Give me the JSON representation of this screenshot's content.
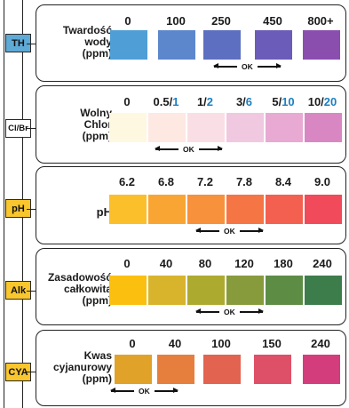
{
  "pads": [
    {
      "label": "TH",
      "color": "#5ea9d6"
    },
    {
      "label": "Cl/Br",
      "color": "#ffffff"
    },
    {
      "label": "pH",
      "color": "#f9c62e"
    },
    {
      "label": "Alk",
      "color": "#f9c62e"
    },
    {
      "label": "CYA",
      "color": "#f9c62e"
    }
  ],
  "ok_label": "OK",
  "rows": [
    {
      "title": [
        "Twardość",
        "wody",
        "(ppm)"
      ],
      "values": [
        [
          "0"
        ],
        [
          "100"
        ],
        [
          "250"
        ],
        [
          "450"
        ],
        [
          "800+"
        ]
      ],
      "colors": [
        "#4f9ed6",
        "#5d87cc",
        "#5d6fc1",
        "#6a5cb8",
        "#8a4fae"
      ]
    },
    {
      "title": [
        "Wolny",
        "Chlor",
        "(ppm)"
      ],
      "values": [
        [
          "0"
        ],
        [
          "0.5/",
          "1"
        ],
        [
          "1/",
          "2"
        ],
        [
          "3/",
          "6"
        ],
        [
          "5/",
          "10"
        ],
        [
          "10/",
          "20"
        ]
      ],
      "colors": [
        "#fff8e0",
        "#fde9e2",
        "#f9dfe5",
        "#f0c8e0",
        "#e8a9d3",
        "#d987c3"
      ]
    },
    {
      "title": [
        "pH"
      ],
      "values": [
        [
          "6.2"
        ],
        [
          "6.8"
        ],
        [
          "7.2"
        ],
        [
          "7.8"
        ],
        [
          "8.4"
        ],
        [
          "9.0"
        ]
      ],
      "colors": [
        "#fbbf2b",
        "#f9a534",
        "#f7913c",
        "#f57545",
        "#f3604f",
        "#f04a5b"
      ]
    },
    {
      "title": [
        "Zasadowość",
        "całkowita",
        "(ppm)"
      ],
      "values": [
        [
          "0"
        ],
        [
          "40"
        ],
        [
          "80"
        ],
        [
          "120"
        ],
        [
          "180"
        ],
        [
          "240"
        ]
      ],
      "colors": [
        "#fbbf10",
        "#d8b42d",
        "#adaa30",
        "#879b3c",
        "#5d8d45",
        "#3d7d4c"
      ]
    },
    {
      "title": [
        "Kwas",
        "cyjanurowy",
        "(ppm)"
      ],
      "values": [
        [
          "0"
        ],
        [
          "40"
        ],
        [
          "100"
        ],
        [
          "150"
        ],
        [
          "240"
        ]
      ],
      "colors": [
        "#e0a229",
        "#e67f3d",
        "#e26350",
        "#de5067",
        "#d43d7b"
      ]
    }
  ]
}
